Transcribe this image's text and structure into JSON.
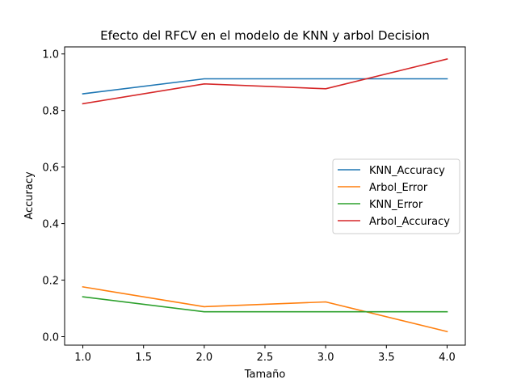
{
  "chart_data": {
    "type": "line",
    "title": "Efecto del RFCV en el modelo de KNN y arbol Decision",
    "xlabel": "Tamaño",
    "ylabel": "Accuracy",
    "xlim": [
      0.85,
      4.15
    ],
    "ylim": [
      -0.03,
      1.025
    ],
    "xticks": [
      1.0,
      1.5,
      2.0,
      2.5,
      3.0,
      3.5,
      4.0
    ],
    "xtick_labels": [
      "1.0",
      "1.5",
      "2.0",
      "2.5",
      "3.0",
      "3.5",
      "4.0"
    ],
    "yticks": [
      0.0,
      0.2,
      0.4,
      0.6,
      0.8,
      1.0
    ],
    "ytick_labels": [
      "0.0",
      "0.2",
      "0.4",
      "0.6",
      "0.8",
      "1.0"
    ],
    "x": [
      1.0,
      2.0,
      3.0,
      4.0
    ],
    "grid": false,
    "legend_position": "center-right",
    "series": [
      {
        "name": "KNN_Accuracy",
        "color": "#1f77b4",
        "values": [
          0.859,
          0.912,
          0.912,
          0.912
        ]
      },
      {
        "name": "Arbol_Error",
        "color": "#ff7f0e",
        "values": [
          0.176,
          0.106,
          0.123,
          0.018
        ]
      },
      {
        "name": "KNN_Error",
        "color": "#2ca02c",
        "values": [
          0.141,
          0.088,
          0.088,
          0.088
        ]
      },
      {
        "name": "Arbol_Accuracy",
        "color": "#d62728",
        "values": [
          0.824,
          0.894,
          0.877,
          0.982
        ]
      }
    ]
  }
}
